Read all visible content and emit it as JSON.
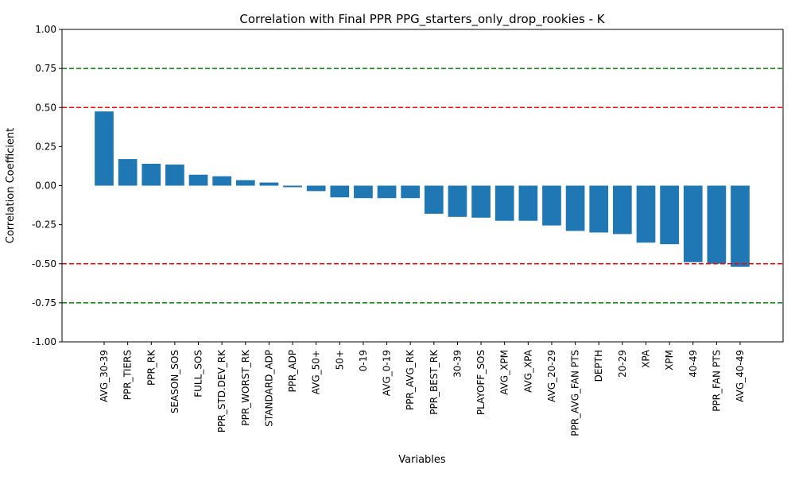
{
  "chart_data": {
    "type": "bar",
    "title": "Correlation with Final PPR PPG_starters_only_drop_rookies - K",
    "xlabel": "Variables",
    "ylabel": "Correlation Coefficient",
    "ylim": [
      -1.0,
      1.0
    ],
    "yticks": [
      "-1.00",
      "-0.75",
      "-0.50",
      "-0.25",
      "0.00",
      "0.25",
      "0.50",
      "0.75",
      "1.00"
    ],
    "bar_color": "#1f77b4",
    "categories": [
      "AVG_30-39",
      "PPR_TIERS",
      "PPR_RK",
      "SEASON_SOS",
      "FULL_SOS",
      "PPR_STD.DEV_RK",
      "PPR_WORST_RK",
      "STANDARD_ADP",
      "PPR_ADP",
      "AVG_50+",
      "50+",
      "0-19",
      "AVG_0-19",
      "PPR_AVG_RK",
      "PPR_BEST_RK",
      "30-39",
      "PLAYOFF_SOS",
      "AVG_XPM",
      "AVG_XPA",
      "AVG_20-29",
      "PPR_AVG_FAN PTS",
      "DEPTH",
      "20-29",
      "XPA",
      "XPM",
      "40-49",
      "PPR_FAN PTS",
      "AVG_40-49"
    ],
    "values": [
      0.475,
      0.17,
      0.14,
      0.135,
      0.07,
      0.06,
      0.035,
      0.02,
      -0.01,
      -0.035,
      -0.075,
      -0.08,
      -0.08,
      -0.08,
      -0.18,
      -0.2,
      -0.205,
      -0.225,
      -0.225,
      -0.255,
      -0.29,
      -0.3,
      -0.31,
      -0.365,
      -0.375,
      -0.49,
      -0.5,
      -0.52
    ],
    "reference_lines": [
      {
        "y": 0.75,
        "color": "#008000"
      },
      {
        "y": 0.5,
        "color": "#ff0000"
      },
      {
        "y": -0.5,
        "color": "#ff0000"
      },
      {
        "y": -0.75,
        "color": "#008000"
      }
    ],
    "grid": false
  }
}
